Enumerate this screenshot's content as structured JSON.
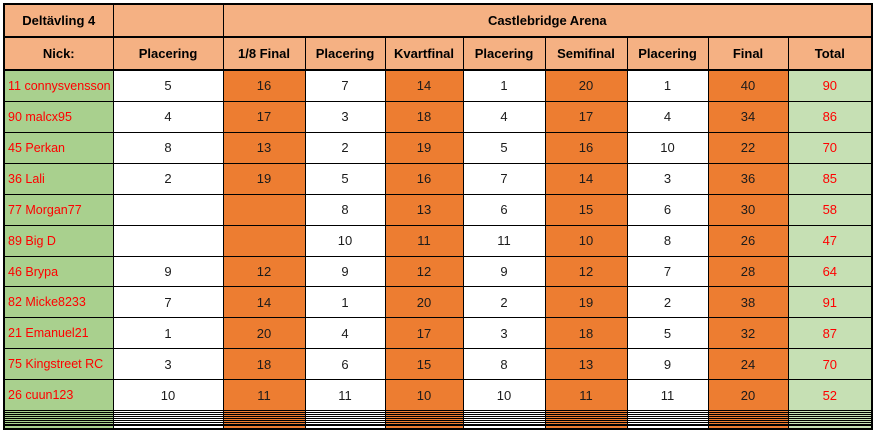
{
  "header": {
    "competition": "Deltävling 4",
    "arena": "Castlebridge Arena",
    "columns": [
      "Nick:",
      "Placering",
      "1/8 Final",
      "Placering",
      "Kvartfinal",
      "Placering",
      "Semifinal",
      "Placering",
      "Final",
      "Total"
    ]
  },
  "table": {
    "rows": [
      {
        "nick": "11 connysvensson",
        "cells": [
          "5",
          "16",
          "7",
          "14",
          "1",
          "20",
          "1",
          "40",
          "90"
        ]
      },
      {
        "nick": "90 malcx95",
        "cells": [
          "4",
          "17",
          "3",
          "18",
          "4",
          "17",
          "4",
          "34",
          "86"
        ]
      },
      {
        "nick": "45 Perkan",
        "cells": [
          "8",
          "13",
          "2",
          "19",
          "5",
          "16",
          "10",
          "22",
          "70"
        ]
      },
      {
        "nick": "36 Lali",
        "cells": [
          "2",
          "19",
          "5",
          "16",
          "7",
          "14",
          "3",
          "36",
          "85"
        ]
      },
      {
        "nick": "77 Morgan77",
        "cells": [
          "",
          "",
          "8",
          "13",
          "6",
          "15",
          "6",
          "30",
          "58"
        ]
      },
      {
        "nick": "89 Big D",
        "cells": [
          "",
          "",
          "10",
          "11",
          "11",
          "10",
          "8",
          "26",
          "47"
        ]
      },
      {
        "nick": "46 Brypa",
        "cells": [
          "9",
          "12",
          "9",
          "12",
          "9",
          "12",
          "7",
          "28",
          "64"
        ]
      },
      {
        "nick": "82 Micke8233",
        "cells": [
          "7",
          "14",
          "1",
          "20",
          "2",
          "19",
          "2",
          "38",
          "91"
        ]
      },
      {
        "nick": "21 Emanuel21",
        "cells": [
          "1",
          "20",
          "4",
          "17",
          "3",
          "18",
          "5",
          "32",
          "87"
        ]
      },
      {
        "nick": "75 Kingstreet RC",
        "cells": [
          "3",
          "18",
          "6",
          "15",
          "8",
          "13",
          "9",
          "24",
          "70"
        ]
      },
      {
        "nick": "26 cuun123",
        "cells": [
          "10",
          "11",
          "11",
          "10",
          "10",
          "11",
          "11",
          "20",
          "52"
        ]
      }
    ],
    "empty_row_count": 9
  },
  "colors": {
    "header_bg": "#f5b183",
    "stage_bg": "#ed7d31",
    "nick_bg": "#a9d08e",
    "total_bg": "#c6e0b4",
    "accent_text": "#ff0000",
    "border": "#000000"
  }
}
